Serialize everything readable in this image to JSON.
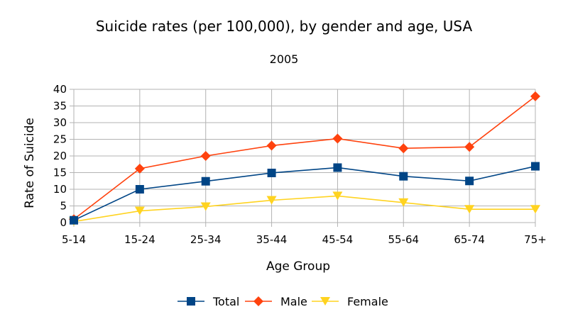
{
  "chart_data": {
    "type": "line",
    "title": "Suicide rates (per 100,000), by gender and age, USA",
    "subtitle": "2005",
    "xlabel": "Age Group",
    "ylabel": "Rate of Suicide",
    "categories": [
      "5-14",
      "15-24",
      "25-34",
      "35-44",
      "45-54",
      "55-64",
      "65-74",
      "75+"
    ],
    "ylim": [
      0,
      40
    ],
    "yticks": [
      0,
      5,
      10,
      15,
      20,
      25,
      30,
      35,
      40
    ],
    "grid": true,
    "legend_position": "bottom",
    "series": [
      {
        "name": "Total",
        "marker": "square",
        "color": "#004586",
        "values": [
          0.7,
          10.0,
          12.4,
          14.9,
          16.5,
          13.9,
          12.5,
          16.9
        ]
      },
      {
        "name": "Male",
        "marker": "diamond",
        "color": "#ff420e",
        "values": [
          1.0,
          16.2,
          20.0,
          23.1,
          25.2,
          22.3,
          22.7,
          37.9
        ]
      },
      {
        "name": "Female",
        "marker": "triangle-down",
        "color": "#ffd320",
        "values": [
          0.3,
          3.5,
          4.8,
          6.7,
          8.0,
          6.0,
          4.0,
          4.0
        ]
      }
    ]
  }
}
